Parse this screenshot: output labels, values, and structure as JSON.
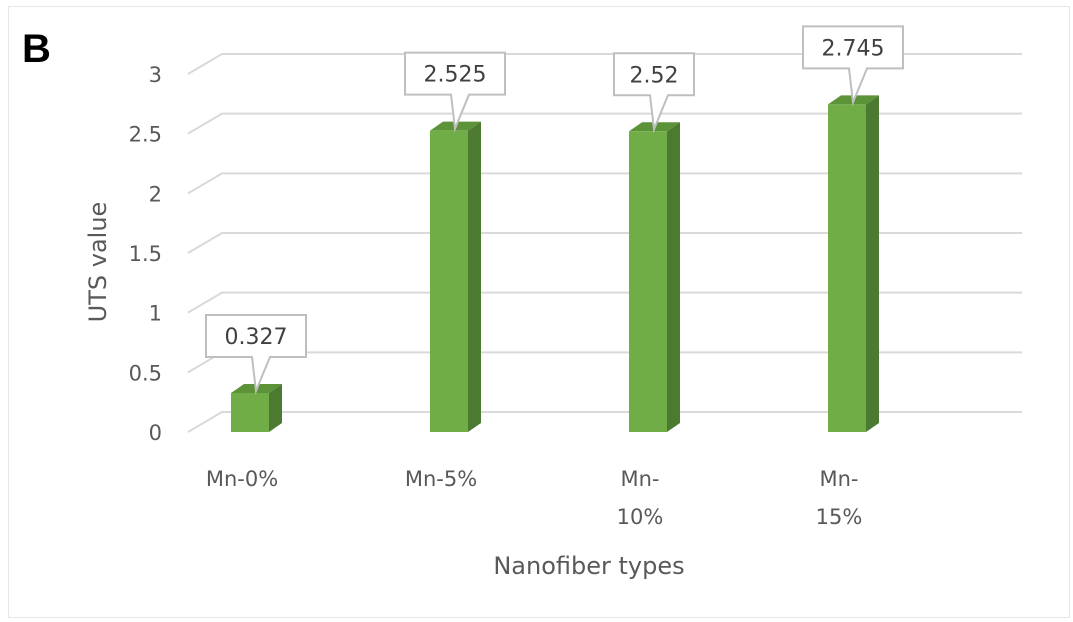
{
  "panel_label": "B",
  "chart_data": {
    "type": "bar",
    "title": "",
    "categories": [
      "Mn-0%",
      "Mn-5%",
      "Mn-10%",
      "Mn-15%"
    ],
    "category_label_lines": [
      [
        "Mn-0%"
      ],
      [
        "Mn-5%"
      ],
      [
        "Mn-",
        "10%"
      ],
      [
        "Mn-",
        "15%"
      ]
    ],
    "values": [
      0.327,
      2.525,
      2.52,
      2.745
    ],
    "data_labels": [
      "0.327",
      "2.525",
      "2.52",
      "2.745"
    ],
    "xlabel": "Nanofiber types",
    "ylabel": "UTS value",
    "ylim": [
      0,
      3
    ],
    "yticks": [
      "0",
      "0.5",
      "1",
      "1.5",
      "2",
      "2.5",
      "3"
    ],
    "grid": true,
    "style": "3d-column",
    "colors": {
      "bar_front": "#70ad47",
      "bar_side": "#4d7a31",
      "bar_top": "#5c9238",
      "grid": "#d9d9d9"
    }
  }
}
